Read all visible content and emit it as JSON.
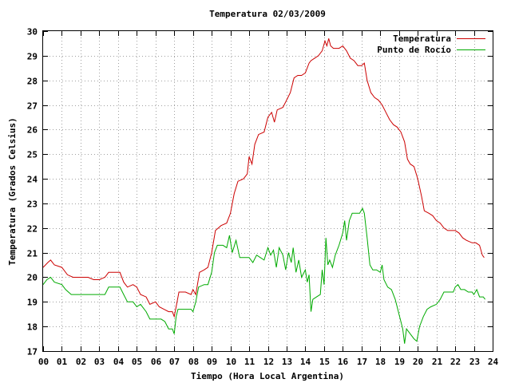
{
  "chart_data": {
    "type": "line",
    "title": "Temperatura 02/03/2009",
    "xlabel": "Tiempo (Hora Local Argentina)",
    "ylabel": "Temperatura (Grados Celsius)",
    "xlim": [
      0,
      24
    ],
    "ylim": [
      17,
      30
    ],
    "x_ticks": [
      0,
      1,
      2,
      3,
      4,
      5,
      6,
      7,
      8,
      9,
      10,
      11,
      12,
      13,
      14,
      15,
      16,
      17,
      18,
      19,
      20,
      21,
      22,
      23,
      24
    ],
    "x_tick_labels": [
      "00",
      "01",
      "02",
      "03",
      "04",
      "05",
      "06",
      "07",
      "08",
      "09",
      "10",
      "11",
      "12",
      "13",
      "14",
      "15",
      "16",
      "17",
      "18",
      "19",
      "20",
      "21",
      "22",
      "23",
      "24"
    ],
    "y_ticks": [
      17,
      18,
      19,
      20,
      21,
      22,
      23,
      24,
      25,
      26,
      27,
      28,
      29,
      30
    ],
    "grid": true,
    "legend_position": "top-right",
    "series": [
      {
        "name": "Temperatura",
        "color": "#cc0000",
        "points": [
          [
            0,
            20.4
          ],
          [
            0.25,
            20.6
          ],
          [
            0.4,
            20.7
          ],
          [
            0.6,
            20.5
          ],
          [
            1,
            20.4
          ],
          [
            1.3,
            20.1
          ],
          [
            1.6,
            20.0
          ],
          [
            2,
            20.0
          ],
          [
            2.4,
            20.0
          ],
          [
            2.7,
            19.9
          ],
          [
            3,
            19.9
          ],
          [
            3.3,
            20.0
          ],
          [
            3.5,
            20.2
          ],
          [
            3.8,
            20.2
          ],
          [
            4.1,
            20.2
          ],
          [
            4.3,
            19.8
          ],
          [
            4.5,
            19.6
          ],
          [
            4.8,
            19.7
          ],
          [
            5,
            19.6
          ],
          [
            5.2,
            19.3
          ],
          [
            5.5,
            19.2
          ],
          [
            5.7,
            18.9
          ],
          [
            6,
            19.0
          ],
          [
            6.2,
            18.8
          ],
          [
            6.45,
            18.7
          ],
          [
            6.7,
            18.6
          ],
          [
            6.9,
            18.6
          ],
          [
            7.0,
            18.4
          ],
          [
            7.1,
            18.8
          ],
          [
            7.25,
            19.4
          ],
          [
            7.6,
            19.4
          ],
          [
            7.9,
            19.3
          ],
          [
            8.0,
            19.5
          ],
          [
            8.15,
            19.3
          ],
          [
            8.35,
            20.2
          ],
          [
            8.6,
            20.3
          ],
          [
            8.8,
            20.4
          ],
          [
            9.0,
            21.0
          ],
          [
            9.2,
            21.9
          ],
          [
            9.5,
            22.1
          ],
          [
            9.8,
            22.2
          ],
          [
            10.0,
            22.6
          ],
          [
            10.2,
            23.4
          ],
          [
            10.4,
            23.9
          ],
          [
            10.7,
            24.0
          ],
          [
            10.9,
            24.2
          ],
          [
            11.0,
            24.9
          ],
          [
            11.15,
            24.6
          ],
          [
            11.3,
            25.4
          ],
          [
            11.5,
            25.8
          ],
          [
            11.8,
            25.9
          ],
          [
            12.0,
            26.5
          ],
          [
            12.2,
            26.7
          ],
          [
            12.35,
            26.3
          ],
          [
            12.5,
            26.8
          ],
          [
            12.8,
            26.9
          ],
          [
            13.0,
            27.2
          ],
          [
            13.2,
            27.5
          ],
          [
            13.4,
            28.1
          ],
          [
            13.6,
            28.2
          ],
          [
            13.8,
            28.2
          ],
          [
            14.0,
            28.3
          ],
          [
            14.2,
            28.7
          ],
          [
            14.3,
            28.8
          ],
          [
            14.5,
            28.9
          ],
          [
            14.7,
            29.0
          ],
          [
            14.9,
            29.2
          ],
          [
            15.05,
            29.6
          ],
          [
            15.15,
            29.4
          ],
          [
            15.25,
            29.7
          ],
          [
            15.35,
            29.4
          ],
          [
            15.5,
            29.3
          ],
          [
            15.8,
            29.3
          ],
          [
            16.0,
            29.4
          ],
          [
            16.2,
            29.2
          ],
          [
            16.4,
            28.9
          ],
          [
            16.6,
            28.8
          ],
          [
            16.8,
            28.6
          ],
          [
            17.0,
            28.6
          ],
          [
            17.15,
            28.7
          ],
          [
            17.3,
            28.0
          ],
          [
            17.5,
            27.5
          ],
          [
            17.7,
            27.3
          ],
          [
            17.9,
            27.2
          ],
          [
            18.1,
            27.0
          ],
          [
            18.3,
            26.7
          ],
          [
            18.5,
            26.4
          ],
          [
            18.7,
            26.2
          ],
          [
            18.9,
            26.1
          ],
          [
            19.1,
            25.9
          ],
          [
            19.3,
            25.5
          ],
          [
            19.45,
            24.8
          ],
          [
            19.6,
            24.6
          ],
          [
            19.8,
            24.5
          ],
          [
            20.0,
            24.0
          ],
          [
            20.2,
            23.3
          ],
          [
            20.35,
            22.7
          ],
          [
            20.6,
            22.6
          ],
          [
            20.8,
            22.5
          ],
          [
            21.0,
            22.3
          ],
          [
            21.2,
            22.2
          ],
          [
            21.4,
            22.0
          ],
          [
            21.6,
            21.9
          ],
          [
            22.0,
            21.9
          ],
          [
            22.2,
            21.8
          ],
          [
            22.4,
            21.6
          ],
          [
            22.6,
            21.5
          ],
          [
            22.9,
            21.4
          ],
          [
            23.1,
            21.4
          ],
          [
            23.3,
            21.3
          ],
          [
            23.45,
            20.9
          ],
          [
            23.55,
            20.8
          ]
        ]
      },
      {
        "name": "Punto de Rocío",
        "color": "#00aa00",
        "points": [
          [
            0,
            19.7
          ],
          [
            0.2,
            19.9
          ],
          [
            0.4,
            20.0
          ],
          [
            0.6,
            19.8
          ],
          [
            1,
            19.7
          ],
          [
            1.2,
            19.5
          ],
          [
            1.5,
            19.3
          ],
          [
            2,
            19.3
          ],
          [
            2.5,
            19.3
          ],
          [
            3,
            19.3
          ],
          [
            3.3,
            19.3
          ],
          [
            3.5,
            19.6
          ],
          [
            3.8,
            19.6
          ],
          [
            4.1,
            19.6
          ],
          [
            4.3,
            19.3
          ],
          [
            4.5,
            19.0
          ],
          [
            4.8,
            19.0
          ],
          [
            5.0,
            18.8
          ],
          [
            5.2,
            18.9
          ],
          [
            5.5,
            18.6
          ],
          [
            5.7,
            18.3
          ],
          [
            6.0,
            18.3
          ],
          [
            6.3,
            18.3
          ],
          [
            6.5,
            18.2
          ],
          [
            6.7,
            17.9
          ],
          [
            6.9,
            17.9
          ],
          [
            7.0,
            17.7
          ],
          [
            7.1,
            18.4
          ],
          [
            7.2,
            18.7
          ],
          [
            7.4,
            18.7
          ],
          [
            7.7,
            18.7
          ],
          [
            7.9,
            18.7
          ],
          [
            8.0,
            18.6
          ],
          [
            8.15,
            19.0
          ],
          [
            8.3,
            19.6
          ],
          [
            8.6,
            19.7
          ],
          [
            8.8,
            19.7
          ],
          [
            9.0,
            20.2
          ],
          [
            9.15,
            21.0
          ],
          [
            9.3,
            21.3
          ],
          [
            9.6,
            21.3
          ],
          [
            9.8,
            21.2
          ],
          [
            9.95,
            21.7
          ],
          [
            10.1,
            21.0
          ],
          [
            10.3,
            21.5
          ],
          [
            10.5,
            20.8
          ],
          [
            10.8,
            20.8
          ],
          [
            11.0,
            20.8
          ],
          [
            11.2,
            20.6
          ],
          [
            11.4,
            20.9
          ],
          [
            11.6,
            20.8
          ],
          [
            11.8,
            20.7
          ],
          [
            12.0,
            21.2
          ],
          [
            12.15,
            20.9
          ],
          [
            12.3,
            21.1
          ],
          [
            12.45,
            20.4
          ],
          [
            12.6,
            21.2
          ],
          [
            12.8,
            20.9
          ],
          [
            12.95,
            20.3
          ],
          [
            13.1,
            21.0
          ],
          [
            13.25,
            20.6
          ],
          [
            13.35,
            21.2
          ],
          [
            13.5,
            20.2
          ],
          [
            13.65,
            20.7
          ],
          [
            13.8,
            20.0
          ],
          [
            14.0,
            20.3
          ],
          [
            14.1,
            19.8
          ],
          [
            14.2,
            20.1
          ],
          [
            14.3,
            18.6
          ],
          [
            14.4,
            19.1
          ],
          [
            14.6,
            19.2
          ],
          [
            14.8,
            19.3
          ],
          [
            14.9,
            20.3
          ],
          [
            15.0,
            19.7
          ],
          [
            15.1,
            21.6
          ],
          [
            15.2,
            20.5
          ],
          [
            15.3,
            20.7
          ],
          [
            15.45,
            20.4
          ],
          [
            15.6,
            20.9
          ],
          [
            15.8,
            21.3
          ],
          [
            16.0,
            21.8
          ],
          [
            16.1,
            22.3
          ],
          [
            16.2,
            21.5
          ],
          [
            16.35,
            22.3
          ],
          [
            16.5,
            22.6
          ],
          [
            16.7,
            22.6
          ],
          [
            16.9,
            22.6
          ],
          [
            17.05,
            22.8
          ],
          [
            17.15,
            22.6
          ],
          [
            17.3,
            21.6
          ],
          [
            17.45,
            20.5
          ],
          [
            17.6,
            20.3
          ],
          [
            17.8,
            20.3
          ],
          [
            18.0,
            20.2
          ],
          [
            18.1,
            20.5
          ],
          [
            18.2,
            19.9
          ],
          [
            18.4,
            19.6
          ],
          [
            18.6,
            19.5
          ],
          [
            18.8,
            19.1
          ],
          [
            18.9,
            18.8
          ],
          [
            19.0,
            18.5
          ],
          [
            19.1,
            18.2
          ],
          [
            19.2,
            17.9
          ],
          [
            19.3,
            17.3
          ],
          [
            19.4,
            17.9
          ],
          [
            19.6,
            17.7
          ],
          [
            19.8,
            17.5
          ],
          [
            19.95,
            17.4
          ],
          [
            20.1,
            18.0
          ],
          [
            20.3,
            18.4
          ],
          [
            20.5,
            18.7
          ],
          [
            20.7,
            18.8
          ],
          [
            21.0,
            18.9
          ],
          [
            21.2,
            19.1
          ],
          [
            21.4,
            19.4
          ],
          [
            21.6,
            19.4
          ],
          [
            21.9,
            19.4
          ],
          [
            22.0,
            19.6
          ],
          [
            22.15,
            19.7
          ],
          [
            22.3,
            19.5
          ],
          [
            22.5,
            19.5
          ],
          [
            22.7,
            19.4
          ],
          [
            22.9,
            19.4
          ],
          [
            23.0,
            19.3
          ],
          [
            23.15,
            19.5
          ],
          [
            23.3,
            19.2
          ],
          [
            23.5,
            19.2
          ],
          [
            23.6,
            19.1
          ]
        ]
      }
    ]
  }
}
